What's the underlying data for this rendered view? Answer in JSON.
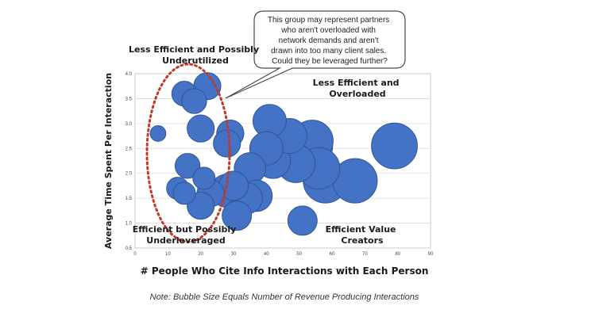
{
  "chart_data": {
    "type": "bubble",
    "xlabel": "# People Who Cite Info Interactions with Each Person",
    "ylabel": "Average Time Spent Per Interaction",
    "xlim": [
      0,
      90
    ],
    "ylim": [
      0.5,
      4.0
    ],
    "xticks": [
      0,
      10,
      20,
      30,
      40,
      50,
      60,
      70,
      80,
      90
    ],
    "yticks": [
      0.5,
      1.0,
      1.5,
      2.0,
      2.5,
      3.0,
      3.5,
      4.0
    ],
    "grid": {
      "horizontal": true,
      "vertical": false
    },
    "annotations": {
      "top_left": [
        "Less Efficient and Possibly",
        "Underutilized"
      ],
      "top_right": [
        "Less Efficient and",
        "Overloaded"
      ],
      "bottom_left": [
        "Efficient but Possibly",
        "Underleveraged"
      ],
      "bottom_right": [
        "Efficient Value",
        "Creators"
      ]
    },
    "callout": [
      "This group may represent  partners",
      "who aren't overloaded with",
      "network demands and aren't",
      "drawn into too many client sales.",
      "Could they be leveraged further?"
    ],
    "note": "Note: Bubble Size Equals Number of Revenue Producing Interactions",
    "points": [
      {
        "x": 7,
        "y": 2.8,
        "size": 2
      },
      {
        "x": 15,
        "y": 3.6,
        "size": 5
      },
      {
        "x": 18,
        "y": 3.45,
        "size": 5
      },
      {
        "x": 22,
        "y": 3.75,
        "size": 6
      },
      {
        "x": 20,
        "y": 2.9,
        "size": 6
      },
      {
        "x": 29,
        "y": 2.8,
        "size": 6
      },
      {
        "x": 28,
        "y": 2.6,
        "size": 6
      },
      {
        "x": 16,
        "y": 2.15,
        "size": 5
      },
      {
        "x": 21,
        "y": 1.9,
        "size": 4
      },
      {
        "x": 13,
        "y": 1.7,
        "size": 4
      },
      {
        "x": 15,
        "y": 1.6,
        "size": 4
      },
      {
        "x": 23,
        "y": 1.6,
        "size": 6
      },
      {
        "x": 20,
        "y": 1.35,
        "size": 6
      },
      {
        "x": 28,
        "y": 1.65,
        "size": 9
      },
      {
        "x": 30,
        "y": 1.75,
        "size": 7
      },
      {
        "x": 31,
        "y": 1.15,
        "size": 7
      },
      {
        "x": 35,
        "y": 2.1,
        "size": 8
      },
      {
        "x": 37,
        "y": 1.55,
        "size": 8
      },
      {
        "x": 34,
        "y": 1.5,
        "size": 8
      },
      {
        "x": 41,
        "y": 3.05,
        "size": 9
      },
      {
        "x": 40,
        "y": 2.5,
        "size": 9
      },
      {
        "x": 42,
        "y": 2.25,
        "size": 10
      },
      {
        "x": 44,
        "y": 2.4,
        "size": 13
      },
      {
        "x": 47,
        "y": 2.75,
        "size": 10
      },
      {
        "x": 49,
        "y": 2.2,
        "size": 12
      },
      {
        "x": 51,
        "y": 2.35,
        "size": 15
      },
      {
        "x": 54,
        "y": 2.65,
        "size": 14
      },
      {
        "x": 56,
        "y": 2.1,
        "size": 14
      },
      {
        "x": 58,
        "y": 1.85,
        "size": 16
      },
      {
        "x": 53,
        "y": 2.55,
        "size": 18
      },
      {
        "x": 67,
        "y": 1.85,
        "size": 16
      },
      {
        "x": 51,
        "y": 1.05,
        "size": 7
      },
      {
        "x": 79,
        "y": 2.55,
        "size": 17
      }
    ]
  }
}
